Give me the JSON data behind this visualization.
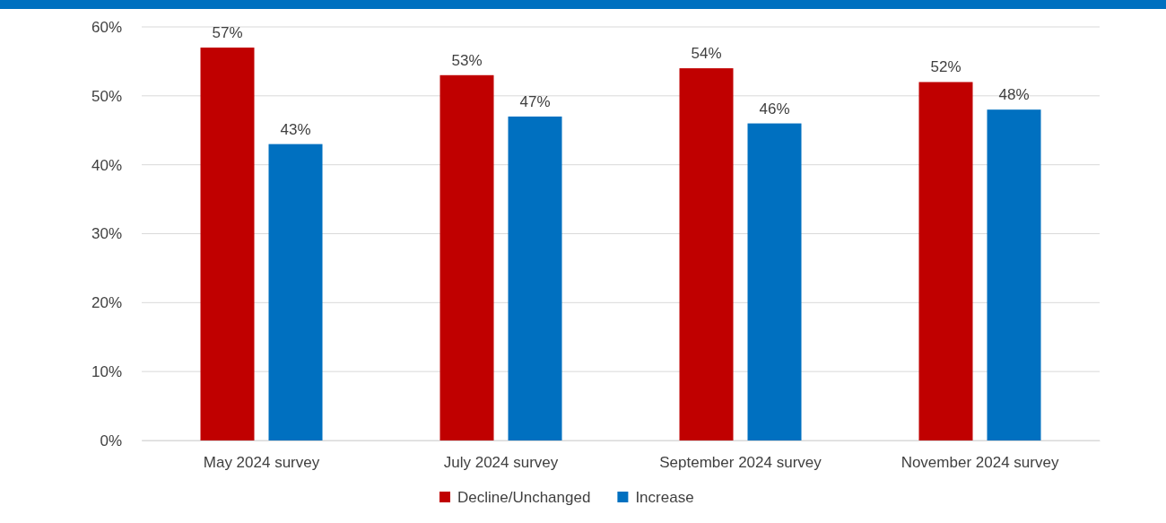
{
  "chart_data": {
    "type": "bar",
    "categories": [
      "May 2024 survey",
      "July 2024 survey",
      "September 2024 survey",
      "November 2024 survey"
    ],
    "series": [
      {
        "name": "Decline/Unchanged",
        "color": "#c00000",
        "values": [
          57,
          53,
          54,
          52
        ],
        "value_labels": [
          "57%",
          "53%",
          "54%",
          "52%"
        ]
      },
      {
        "name": "Increase",
        "color": "#0070c0",
        "values": [
          43,
          47,
          46,
          48
        ],
        "value_labels": [
          "43%",
          "47%",
          "46%",
          "48%"
        ]
      }
    ],
    "ylim": [
      0,
      60
    ],
    "yticks": [
      {
        "value": 0,
        "label": "0%"
      },
      {
        "value": 10,
        "label": "10%"
      },
      {
        "value": 20,
        "label": "20%"
      },
      {
        "value": 30,
        "label": "30%"
      },
      {
        "value": 40,
        "label": "40%"
      },
      {
        "value": 50,
        "label": "50%"
      },
      {
        "value": 60,
        "label": "60%"
      }
    ],
    "grid": "y",
    "legend": "bottom"
  }
}
